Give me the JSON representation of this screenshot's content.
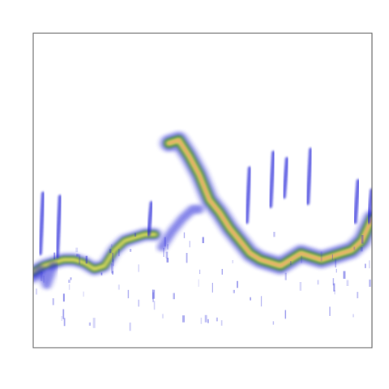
{
  "chart_data": {
    "type": "heatmap",
    "title": "",
    "xlabel": "",
    "ylabel": "",
    "grid": false,
    "legend": "none",
    "colors": {
      "low": "#2323d8",
      "mid": "#3a8a2e",
      "high": "#e8e060",
      "peak": "#f0a070",
      "frame": "#555555"
    },
    "xlim": [
      0,
      100
    ],
    "ylim": [
      0,
      100
    ],
    "ridges": [
      {
        "name": "",
        "points": [
          [
            0,
            24
          ],
          [
            3,
            26
          ],
          [
            6,
            27
          ],
          [
            9,
            28
          ],
          [
            12,
            28
          ],
          [
            15,
            27
          ],
          [
            18,
            25
          ],
          [
            21,
            26
          ],
          [
            24,
            31
          ],
          [
            27,
            34
          ],
          [
            30,
            35
          ],
          [
            33,
            36
          ],
          [
            36,
            36
          ]
        ],
        "intensity": 0.7
      },
      {
        "name": "",
        "points": [
          [
            40,
            65
          ],
          [
            43,
            66
          ],
          [
            46,
            61
          ],
          [
            49,
            55
          ],
          [
            52,
            47
          ],
          [
            55,
            43
          ],
          [
            58,
            38
          ],
          [
            61,
            34
          ],
          [
            64,
            30
          ],
          [
            67,
            28
          ],
          [
            70,
            27
          ],
          [
            73,
            26
          ],
          [
            76,
            28
          ],
          [
            79,
            30
          ],
          [
            82,
            29
          ],
          [
            85,
            28
          ],
          [
            88,
            29
          ],
          [
            91,
            30
          ],
          [
            94,
            31
          ],
          [
            97,
            34
          ],
          [
            100,
            41
          ]
        ],
        "intensity": 0.95
      },
      {
        "name": "",
        "points": [
          [
            38,
            32
          ],
          [
            41,
            37
          ],
          [
            44,
            41
          ],
          [
            47,
            44
          ],
          [
            49,
            44
          ]
        ],
        "intensity": 0.2
      },
      {
        "name": "",
        "points": [
          [
            0,
            22
          ],
          [
            2,
            25
          ],
          [
            4,
            20
          ],
          [
            6,
            26
          ]
        ],
        "intensity": 0.3
      }
    ],
    "spikes": [
      {
        "x": 2,
        "y0": 30,
        "y1": 49
      },
      {
        "x": 7,
        "y0": 29,
        "y1": 48
      },
      {
        "x": 34,
        "y0": 36,
        "y1": 46
      },
      {
        "x": 63,
        "y0": 40,
        "y1": 57
      },
      {
        "x": 70,
        "y0": 45,
        "y1": 62
      },
      {
        "x": 74,
        "y0": 48,
        "y1": 60
      },
      {
        "x": 81,
        "y0": 46,
        "y1": 63
      },
      {
        "x": 95,
        "y0": 40,
        "y1": 53
      },
      {
        "x": 99,
        "y0": 40,
        "y1": 50
      }
    ]
  }
}
